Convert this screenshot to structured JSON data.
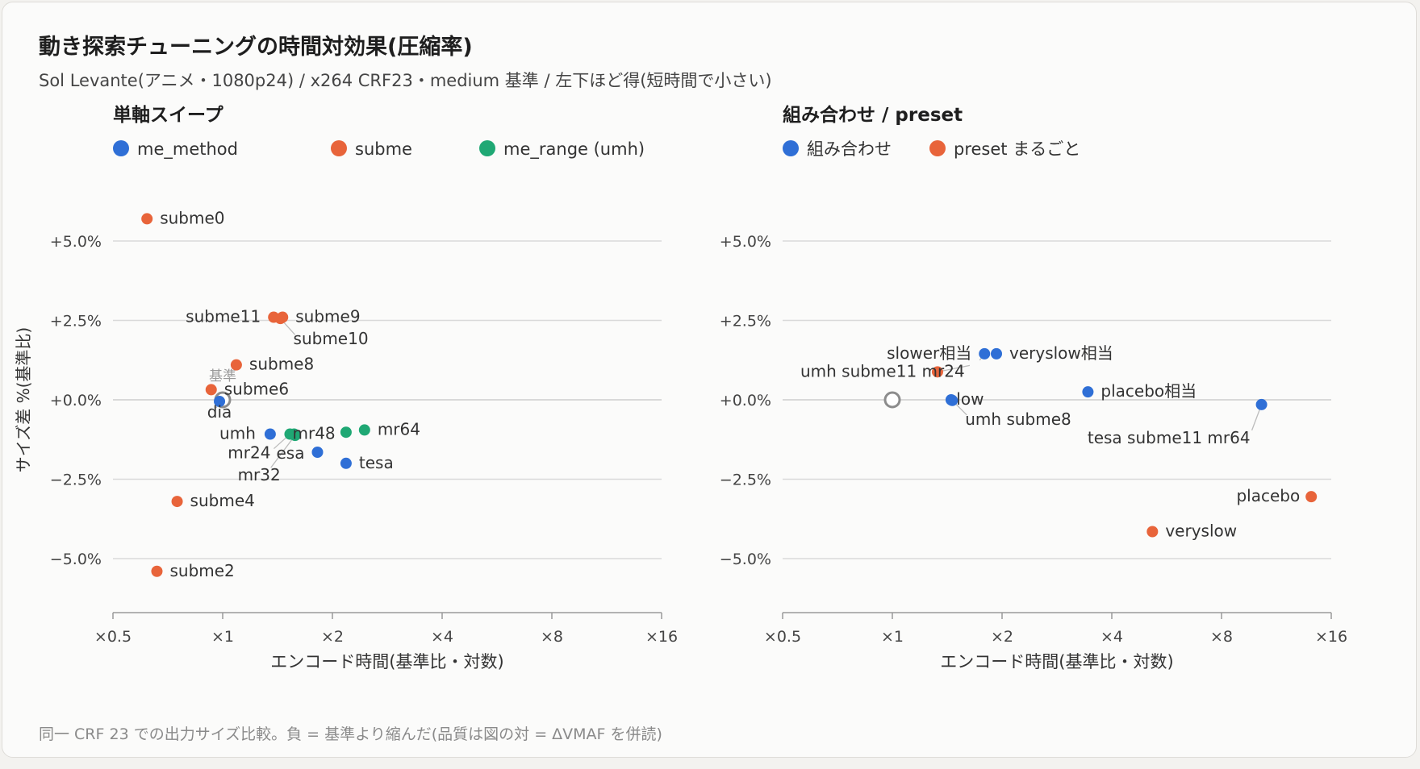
{
  "title": "動き探索チューニングの時間対効果(圧縮率)",
  "subtitle": "Sol Levante(アニメ・1080p24) / x264 CRF23・medium 基準 / 左下ほど得(短時間で小さい)",
  "footnote": "同一 CRF 23 での出力サイズ比較。負 = 基準より縮んだ(品質は図の対 = ΔVMAF を併読)",
  "colors": {
    "blue": "#2f6fd6",
    "orange": "#e8643a",
    "green": "#1fa874",
    "grid": "#d9d9d9",
    "axis": "#9a9a9a",
    "text": "#444444"
  },
  "chart_data": [
    {
      "type": "scatter",
      "title": "単軸スイープ",
      "xlabel": "エンコード時間(基準比・対数)",
      "ylabel": "サイズ差 %(基準比)",
      "x_scale": "log2",
      "xlim": [
        0.5,
        16
      ],
      "ylim": [
        -6.7,
        7.0
      ],
      "x_ticks": [
        0.5,
        1,
        2,
        4,
        8,
        16
      ],
      "x_tick_labels": [
        "×0.5",
        "×1",
        "×2",
        "×4",
        "×8",
        "×16"
      ],
      "y_ticks": [
        5,
        2.5,
        0,
        -2.5,
        -5
      ],
      "y_tick_labels": [
        "+5.0%",
        "+2.5%",
        "+0.0%",
        "−2.5%",
        "−5.0%"
      ],
      "grid": true,
      "legend_position": "top-left",
      "baseline": {
        "label": "基準",
        "x": 1.0,
        "y": 0.0
      },
      "series": [
        {
          "name": "me_method",
          "color": "#2f6fd6",
          "points": [
            {
              "label": "dia",
              "x": 0.98,
              "y": -0.05
            },
            {
              "label": "umh",
              "x": 1.35,
              "y": -1.08
            },
            {
              "label": "esa",
              "x": 1.82,
              "y": -1.65
            },
            {
              "label": "tesa",
              "x": 2.18,
              "y": -2.0
            }
          ]
        },
        {
          "name": "subme",
          "color": "#e8643a",
          "points": [
            {
              "label": "subme0",
              "x": 0.62,
              "y": 5.7
            },
            {
              "label": "subme11",
              "x": 1.38,
              "y": 2.6
            },
            {
              "label": "subme9",
              "x": 1.46,
              "y": 2.6
            },
            {
              "label": "subme10",
              "x": 1.44,
              "y": 2.56
            },
            {
              "label": "subme8",
              "x": 1.09,
              "y": 1.1
            },
            {
              "label": "subme6",
              "x": 0.93,
              "y": 0.32
            },
            {
              "label": "subme4",
              "x": 0.75,
              "y": -3.2
            },
            {
              "label": "subme2",
              "x": 0.66,
              "y": -5.4
            }
          ]
        },
        {
          "name": "me_range (umh)",
          "color": "#1fa874",
          "points": [
            {
              "label": "mr24",
              "x": 1.53,
              "y": -1.08
            },
            {
              "label": "mr32",
              "x": 1.58,
              "y": -1.12
            },
            {
              "label": "mr48",
              "x": 1.57,
              "y": -1.08
            },
            {
              "label": "mr64",
              "x": 2.45,
              "y": -0.95
            },
            {
              "label": "",
              "x": 2.18,
              "y": -1.02
            }
          ]
        }
      ]
    },
    {
      "type": "scatter",
      "title": "組み合わせ / preset",
      "xlabel": "エンコード時間(基準比・対数)",
      "ylabel": "",
      "x_scale": "log2",
      "xlim": [
        0.5,
        16
      ],
      "ylim": [
        -6.7,
        7.0
      ],
      "x_ticks": [
        0.5,
        1,
        2,
        4,
        8,
        16
      ],
      "x_tick_labels": [
        "×0.5",
        "×1",
        "×2",
        "×4",
        "×8",
        "×16"
      ],
      "y_ticks": [
        5,
        2.5,
        0,
        -2.5,
        -5
      ],
      "y_tick_labels": [
        "+5.0%",
        "+2.5%",
        "+0.0%",
        "−2.5%",
        "−5.0%"
      ],
      "grid": true,
      "legend_position": "top-left",
      "baseline": {
        "label": "",
        "x": 1.0,
        "y": 0.0
      },
      "series": [
        {
          "name": "組み合わせ",
          "color": "#2f6fd6",
          "points": [
            {
              "label": "slower相当",
              "x": 1.79,
              "y": 1.45
            },
            {
              "label": "veryslow相当",
              "x": 1.93,
              "y": 1.45
            },
            {
              "label": "slow",
              "x": 1.45,
              "y": 0.0
            },
            {
              "label": "umh subme8",
              "x": 1.46,
              "y": -0.02
            },
            {
              "label": "placebo相当",
              "x": 3.44,
              "y": 0.25
            },
            {
              "label": "tesa subme11 mr64",
              "x": 10.3,
              "y": -0.15
            }
          ]
        },
        {
          "name": "preset まるごと",
          "color": "#e8643a",
          "points": [
            {
              "label": "umh subme11 mr24",
              "x": 1.33,
              "y": 0.88
            },
            {
              "label": "placebo",
              "x": 14.1,
              "y": -3.05
            },
            {
              "label": "veryslow",
              "x": 5.17,
              "y": -4.15
            }
          ]
        }
      ]
    }
  ]
}
